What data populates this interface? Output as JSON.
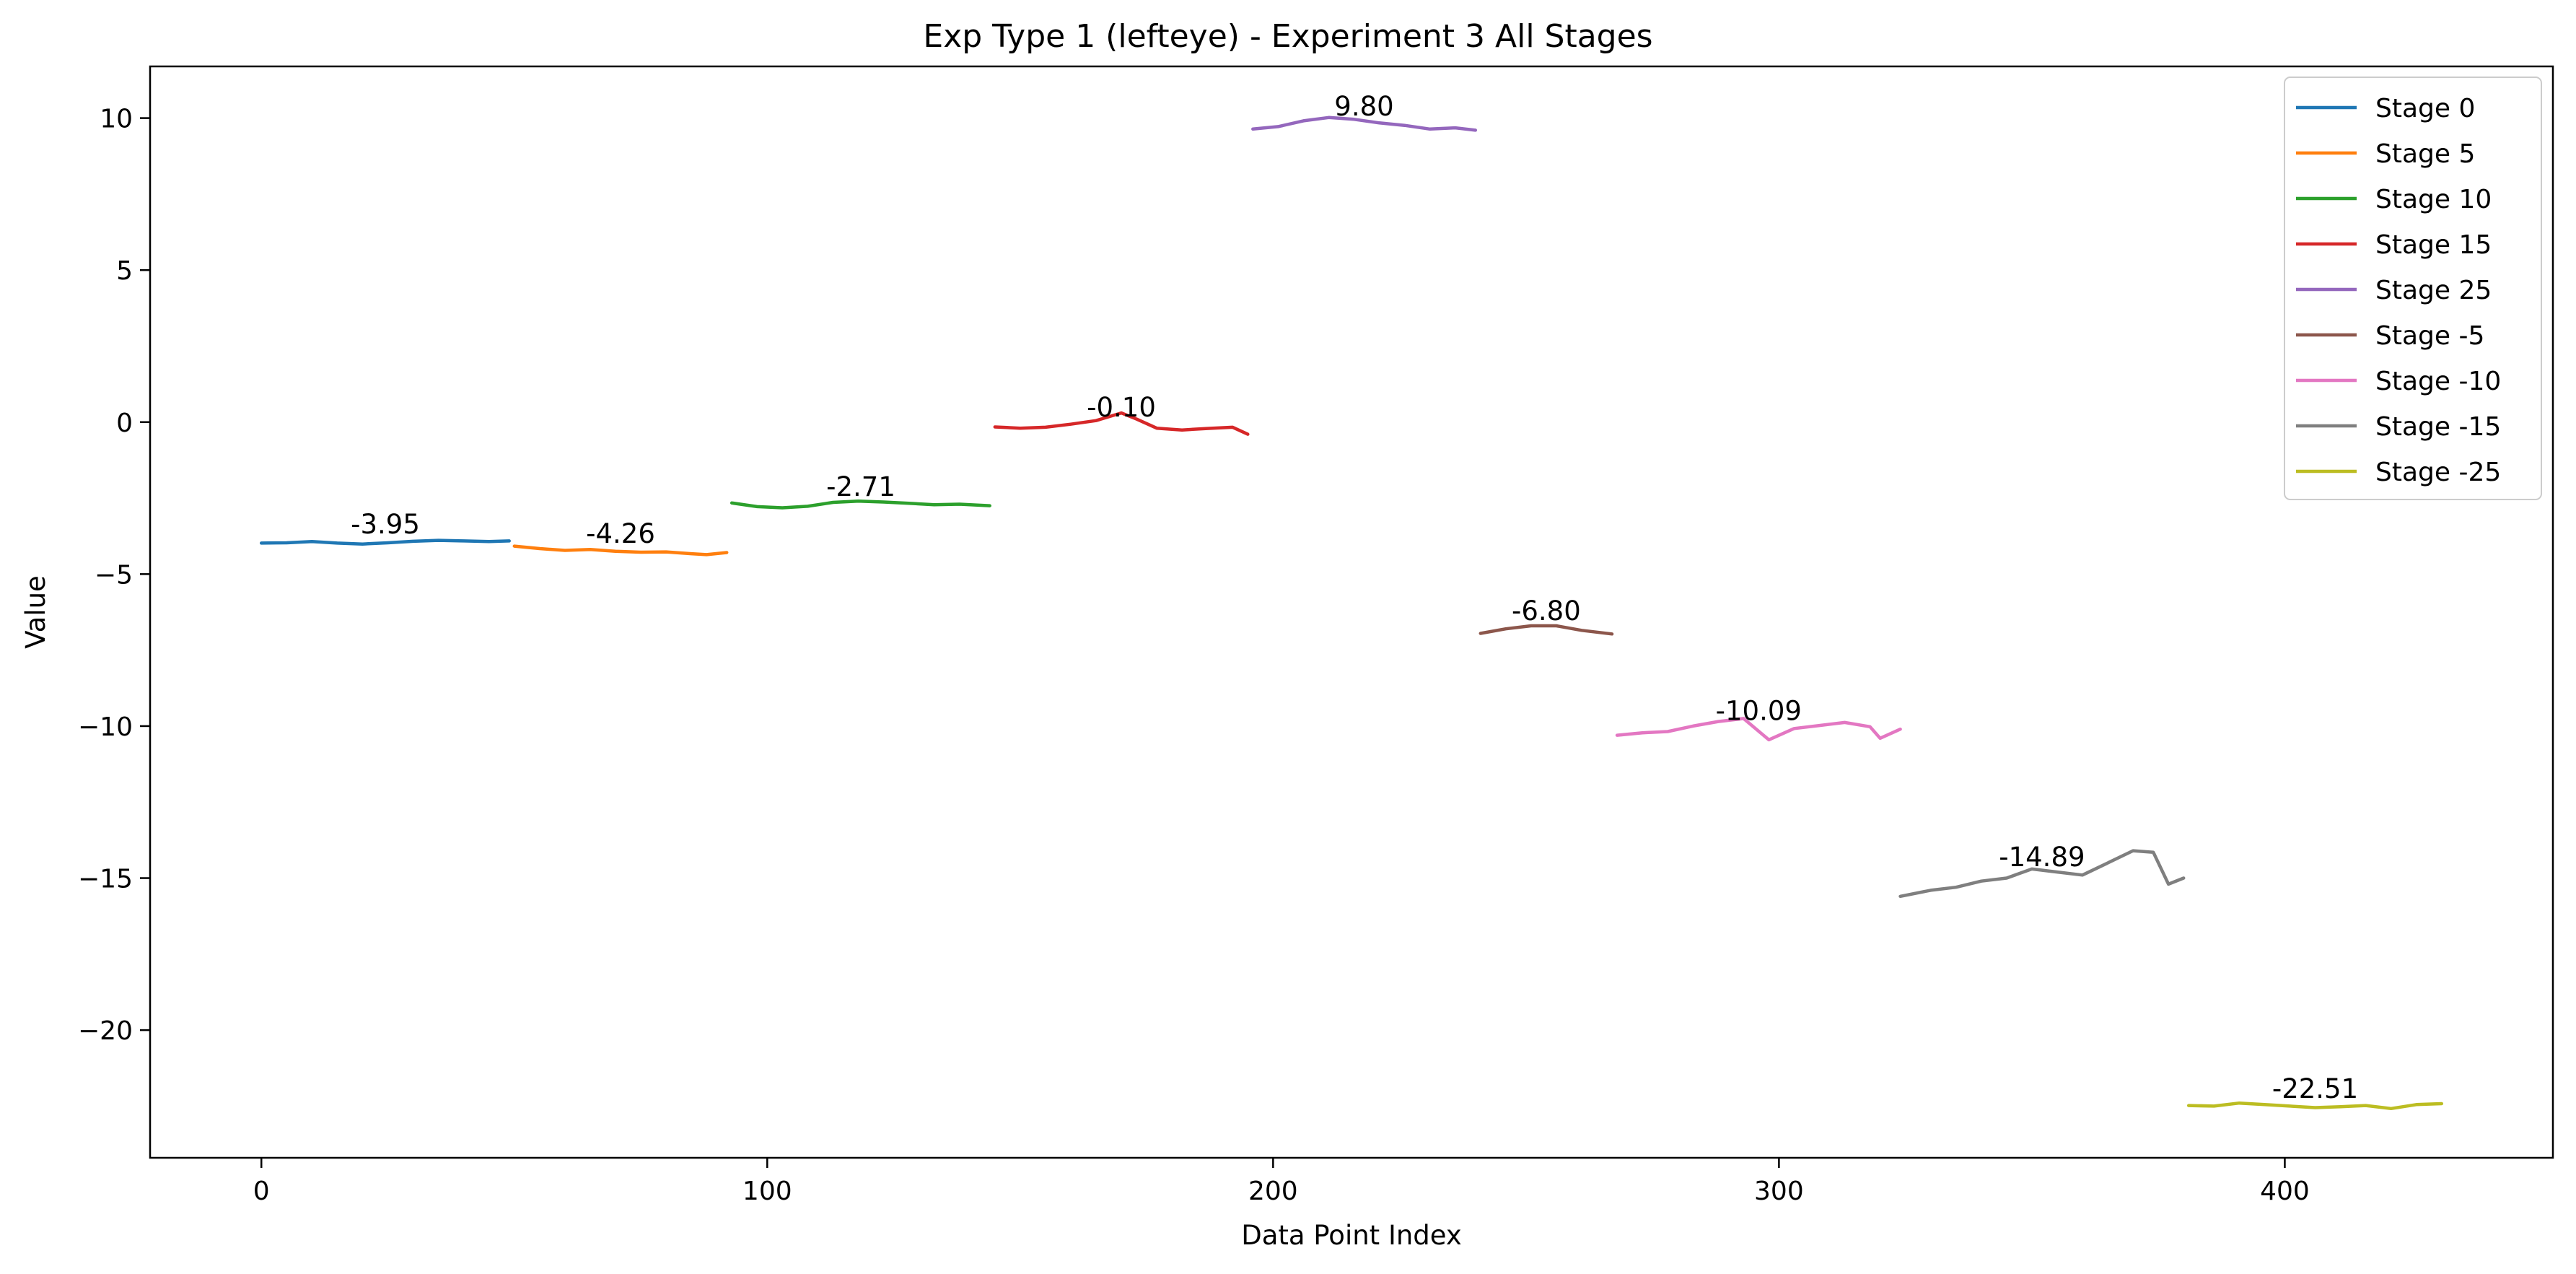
{
  "chart_data": {
    "type": "line",
    "title": "Exp Type 1 (lefteye) - Experiment 3 All Stages",
    "xlabel": "Data Point Index",
    "ylabel": "Value",
    "xlim": [
      -22,
      453
    ],
    "ylim": [
      -24.2,
      11.7
    ],
    "xticks": [
      0,
      100,
      200,
      300,
      400
    ],
    "yticks": [
      10,
      5,
      0,
      -5,
      -10,
      -15,
      -20
    ],
    "xtick_labels": [
      "0",
      "100",
      "200",
      "300",
      "400"
    ],
    "ytick_labels": [
      "10",
      "5",
      "0",
      "−5",
      "−10",
      "−15",
      "−20"
    ],
    "grid": false,
    "legend_position": "top-right",
    "series": [
      {
        "name": "Stage 0",
        "color": "#1f77b4",
        "label": "-3.95",
        "x": [
          0,
          5,
          10,
          15,
          20,
          25,
          30,
          35,
          40,
          45,
          49
        ],
        "y": [
          -3.98,
          -3.97,
          -3.93,
          -3.98,
          -4.01,
          -3.97,
          -3.92,
          -3.89,
          -3.91,
          -3.93,
          -3.91
        ]
      },
      {
        "name": "Stage 5",
        "color": "#ff7f0e",
        "label": "-4.26",
        "x": [
          50,
          55,
          60,
          65,
          70,
          75,
          80,
          85,
          88,
          92
        ],
        "y": [
          -4.08,
          -4.16,
          -4.22,
          -4.19,
          -4.25,
          -4.28,
          -4.27,
          -4.33,
          -4.36,
          -4.29
        ]
      },
      {
        "name": "Stage 10",
        "color": "#2ca02c",
        "label": "-2.71",
        "x": [
          93,
          98,
          103,
          108,
          113,
          118,
          123,
          128,
          133,
          138,
          144
        ],
        "y": [
          -2.66,
          -2.78,
          -2.82,
          -2.77,
          -2.64,
          -2.6,
          -2.63,
          -2.67,
          -2.72,
          -2.7,
          -2.75
        ]
      },
      {
        "name": "Stage 15",
        "color": "#d62728",
        "label": "-0.10",
        "x": [
          145,
          150,
          155,
          160,
          165,
          170,
          173,
          177,
          182,
          187,
          192,
          195
        ],
        "y": [
          -0.16,
          -0.2,
          -0.17,
          -0.07,
          0.05,
          0.3,
          0.1,
          -0.2,
          -0.26,
          -0.21,
          -0.17,
          -0.4
        ]
      },
      {
        "name": "Stage 25",
        "color": "#9467bd",
        "label": "9.80",
        "x": [
          196,
          201,
          206,
          211,
          216,
          221,
          226,
          231,
          236,
          240
        ],
        "y": [
          9.64,
          9.72,
          9.91,
          10.02,
          9.96,
          9.84,
          9.76,
          9.64,
          9.68,
          9.6
        ]
      },
      {
        "name": "Stage -5",
        "color": "#8c564b",
        "label": "-6.80",
        "x": [
          241,
          246,
          251,
          256,
          261,
          267
        ],
        "y": [
          -6.95,
          -6.8,
          -6.7,
          -6.7,
          -6.85,
          -6.97
        ]
      },
      {
        "name": "Stage -10",
        "color": "#e377c2",
        "label": "-10.09",
        "x": [
          268,
          273,
          278,
          283,
          288,
          293,
          298,
          303,
          308,
          313,
          318,
          320,
          324
        ],
        "y": [
          -10.3,
          -10.22,
          -10.18,
          -10.0,
          -9.85,
          -9.75,
          -10.45,
          -10.08,
          -9.98,
          -9.88,
          -10.02,
          -10.4,
          -10.1
        ]
      },
      {
        "name": "Stage -15",
        "color": "#7f7f7f",
        "label": "-14.89",
        "x": [
          324,
          330,
          335,
          340,
          345,
          350,
          355,
          360,
          365,
          370,
          374,
          377,
          380
        ],
        "y": [
          -15.6,
          -15.4,
          -15.3,
          -15.1,
          -15.0,
          -14.7,
          -14.8,
          -14.9,
          -14.5,
          -14.1,
          -14.15,
          -15.2,
          -15.0
        ]
      },
      {
        "name": "Stage -25",
        "color": "#bcbd22",
        "label": "-22.51",
        "x": [
          381,
          386,
          391,
          396,
          401,
          406,
          411,
          416,
          421,
          426,
          431
        ],
        "y": [
          -22.48,
          -22.5,
          -22.4,
          -22.45,
          -22.5,
          -22.55,
          -22.52,
          -22.48,
          -22.58,
          -22.45,
          -22.42
        ]
      }
    ]
  }
}
